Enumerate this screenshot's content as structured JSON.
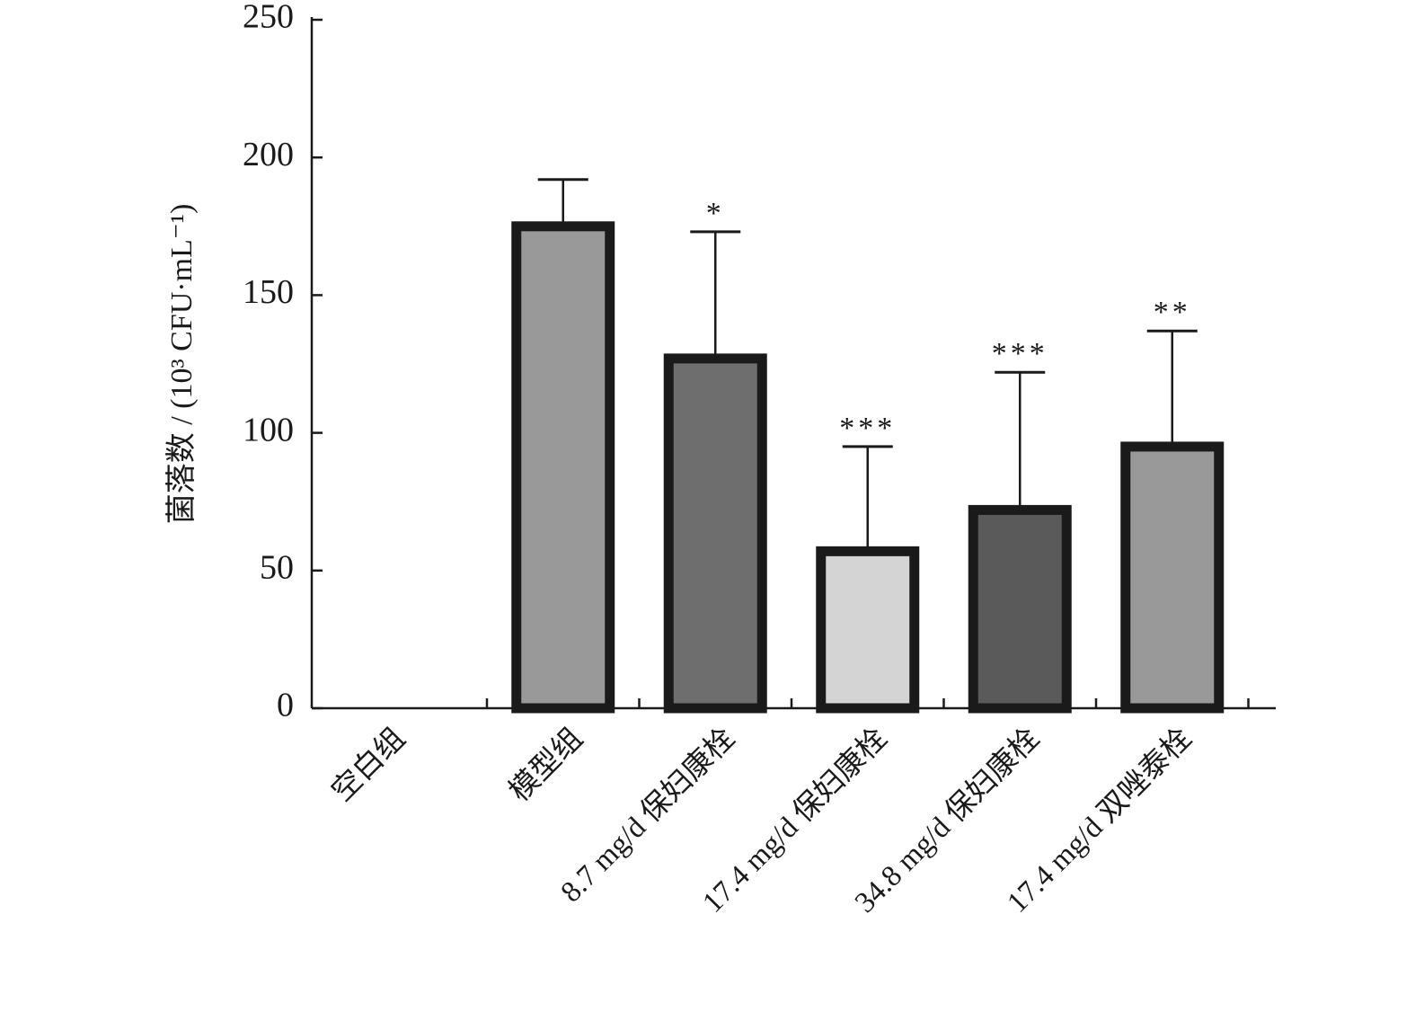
{
  "chart_data": {
    "type": "bar",
    "categories": [
      "空白组",
      "模型组",
      "8.7 mg/d 保妇康栓",
      "17.4 mg/d 保妇康栓",
      "34.8 mg/d 保妇康栓",
      "17.4 mg/d 双唑泰栓"
    ],
    "values": [
      0,
      175,
      127,
      57,
      72,
      95
    ],
    "errors": [
      0,
      17,
      46,
      38,
      50,
      42
    ],
    "significance": [
      "",
      "",
      "*",
      "***",
      "***",
      "**"
    ],
    "bar_colors": [
      "#999999",
      "#999999",
      "#6e6e6e",
      "#d4d4d4",
      "#5a5a5a",
      "#999999"
    ],
    "ylabel": "菌落数 / (10³ CFU·mL⁻¹)",
    "ylim": [
      0,
      250
    ],
    "yticks": [
      "0",
      "50",
      "100",
      "150",
      "200",
      "250"
    ],
    "grid": false,
    "legend": "none"
  }
}
